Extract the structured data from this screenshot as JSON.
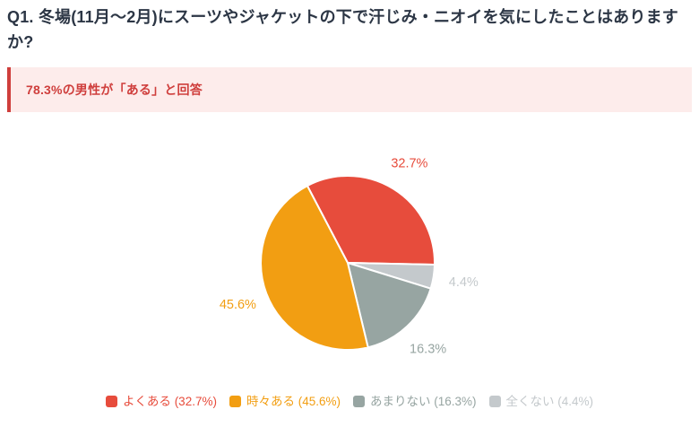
{
  "page": {
    "question": "Q1. 冬場(11月〜2月)にスーツやジャケットの下で汗じみ・ニオイを気にしたことはありますか?",
    "highlight": "78.3%の男性が「ある」と回答"
  },
  "colors": {
    "title_text": "#2c3645",
    "highlight_text": "#cf3e3c",
    "highlight_bg": "#fdeceb",
    "highlight_border": "#cf3e3c",
    "background": "#ffffff"
  },
  "chart_data": {
    "type": "pie",
    "title": "",
    "categories": [
      "よくある",
      "時々ある",
      "あまりない",
      "全くない"
    ],
    "values": [
      32.7,
      45.6,
      16.3,
      4.4
    ],
    "unit": "%",
    "colors": [
      "#e74c3c",
      "#f29e12",
      "#97a5a2",
      "#c4c9cc"
    ],
    "point_labels": [
      "32.7%",
      "45.6%",
      "16.3%",
      "4.4%"
    ],
    "legend_labels": [
      "よくある (32.7%)",
      "時々ある (45.6%)",
      "あまりない (16.3%)",
      "全くない (4.4%)"
    ],
    "legend_position": "bottom",
    "clockwise_order": [
      0,
      3,
      2,
      1
    ],
    "start_angle_deg_from_top": -27.7,
    "slice_border_color": "#ffffff"
  }
}
